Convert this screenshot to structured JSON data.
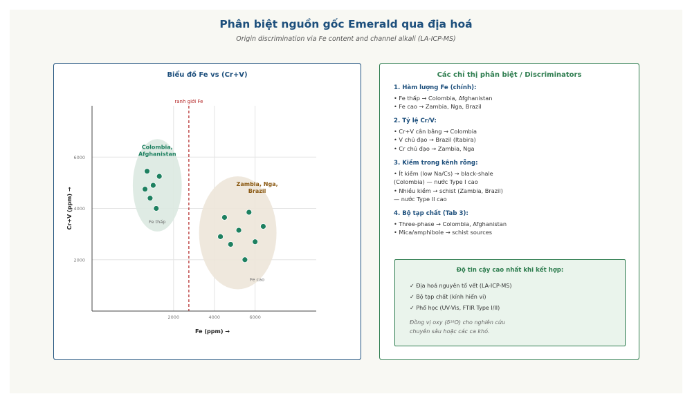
{
  "header": {
    "title": "Phân biệt nguồn gốc Emerald qua địa hoá",
    "subtitle": "Origin discrimination via Fe content and channel alkali (LA-ICP-MS)"
  },
  "chart_data": {
    "type": "scatter",
    "title": "Biểu đồ Fe vs (Cr+V)",
    "xlabel": "Fe (ppm) →",
    "ylabel": "Cr+V (ppm) →",
    "xlim": [
      -2000,
      9000
    ],
    "ylim": [
      0,
      8000
    ],
    "x_ticks": [
      2000,
      4000,
      6000
    ],
    "y_ticks": [
      2000,
      4000,
      6000
    ],
    "grid": true,
    "threshold": {
      "x": 2750,
      "label": "ranh giới Fe",
      "color": "#b22222"
    },
    "series": [
      {
        "name": "Colombia, Afghanistan",
        "color": "#1e8060",
        "points": [
          [
            700,
            5450
          ],
          [
            1300,
            5250
          ],
          [
            1000,
            4900
          ],
          [
            600,
            4750
          ],
          [
            850,
            4400
          ],
          [
            1150,
            4000
          ]
        ]
      },
      {
        "name": "Zambia, Nga, Brazil",
        "color": "#1e8060",
        "points": [
          [
            5700,
            3850
          ],
          [
            4500,
            3650
          ],
          [
            6400,
            3300
          ],
          [
            5200,
            3150
          ],
          [
            4300,
            2900
          ],
          [
            6000,
            2700
          ],
          [
            4800,
            2600
          ],
          [
            5500,
            2000
          ]
        ]
      }
    ],
    "clusters": [
      {
        "label": "Colombia, Afghanistan",
        "sublabel": "Fe thấp",
        "fill": "#dbe9e1",
        "label_color": "#1e8060",
        "cx": 1200,
        "cy": 4900,
        "rx": 1200,
        "ry": 1800
      },
      {
        "label": "Zambia, Nga, Brazil",
        "sublabel": "Fe cao",
        "fill": "#ede6d9",
        "label_color": "#8b5a14",
        "cx": 5150,
        "cy": 3050,
        "rx": 1900,
        "ry": 2200
      }
    ]
  },
  "discriminators": {
    "title": "Các chỉ thị phân biệt / Discriminators",
    "sections": [
      {
        "heading": "1. Hàm lượng Fe (chính):",
        "lines": [
          "• Fe thấp → Colombia, Afghanistan",
          "• Fe cao → Zambia, Nga, Brazil"
        ]
      },
      {
        "heading": "2. Tỷ lệ Cr/V:",
        "lines": [
          "• Cr+V cân bằng → Colombia",
          "• V chủ đạo → Brazil (Itabira)",
          "• Cr chủ đạo → Zambia, Nga"
        ]
      },
      {
        "heading": "3. Kiềm trong kênh rỗng:",
        "lines": [
          "• Ít kiềm (low Na/Cs) → black-shale",
          "(Colombia) — nước Type I cao",
          "• Nhiều kiềm → schist (Zambia, Brazil)",
          "— nước Type II cao"
        ]
      },
      {
        "heading": "4. Bộ tạp chất (Tab 3):",
        "lines": [
          "• Three-phase → Colombia, Afghanistan",
          "• Mica/amphibole → schist sources"
        ]
      }
    ]
  },
  "summary": {
    "title": "Độ tin cậy cao nhất khi kết hợp:",
    "items": [
      "✓ Địa hoá nguyên tố vết (LA-ICP-MS)",
      "✓ Bộ tạp chất (kính hiển vi)",
      "✓ Phổ học (UV-Vis, FTIR Type I/II)"
    ],
    "note_line1": "Đồng vị oxy (δ¹⁸O) cho nghiên cứu",
    "note_line2": "chuyên sâu hoặc các ca khó."
  }
}
